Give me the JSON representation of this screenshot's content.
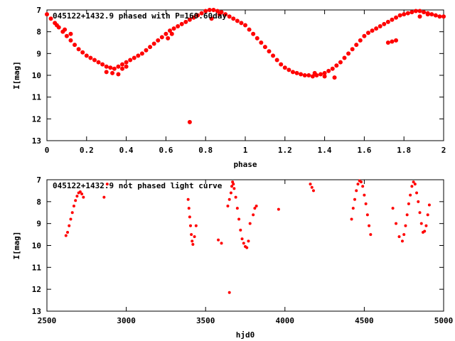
{
  "chart_data": [
    {
      "type": "scatter",
      "title": "045122+1432.9 phased with P=160.60day",
      "xlabel": "phase",
      "ylabel": "I[mag]",
      "xlim": [
        0,
        2
      ],
      "ylim": [
        13,
        7
      ],
      "y_inverted": true,
      "xticks": [
        "0",
        "0.2",
        "0.4",
        "0.6",
        "0.8",
        "1",
        "1.2",
        "1.4",
        "1.6",
        "1.8",
        "2"
      ],
      "xtick_values": [
        0,
        0.2,
        0.4,
        0.6,
        0.8,
        1.0,
        1.2,
        1.4,
        1.6,
        1.8,
        2.0
      ],
      "yticks": [
        "7",
        "8",
        "9",
        "10",
        "11",
        "12",
        "13"
      ],
      "ytick_values": [
        7,
        8,
        9,
        10,
        11,
        12,
        13
      ],
      "grid": false,
      "marker_color": "#ff0000",
      "series": [
        {
          "x": [
            0.0,
            0.02,
            0.04,
            0.06,
            0.08,
            0.1,
            0.12,
            0.14,
            0.16,
            0.18,
            0.2,
            0.22,
            0.24,
            0.26,
            0.28,
            0.3,
            0.32,
            0.34,
            0.36,
            0.38,
            0.4,
            0.42,
            0.44,
            0.46,
            0.48,
            0.5,
            0.52,
            0.54,
            0.56,
            0.58,
            0.6,
            0.62,
            0.64,
            0.66,
            0.68,
            0.7,
            0.72,
            0.74,
            0.76,
            0.78,
            0.8,
            0.82,
            0.84,
            0.86,
            0.88,
            0.9,
            0.92,
            0.94,
            0.96,
            0.98,
            0.72,
            0.3,
            0.33,
            0.36,
            0.38,
            0.4,
            0.05,
            0.09,
            0.12,
            0.61,
            0.63,
            0.83,
            0.87,
            1.0,
            1.02,
            1.04,
            1.06,
            1.08,
            1.1,
            1.12,
            1.14,
            1.16,
            1.18,
            1.2,
            1.22,
            1.24,
            1.26,
            1.28,
            1.3,
            1.32,
            1.34,
            1.36,
            1.38,
            1.4,
            1.42,
            1.44,
            1.46,
            1.48,
            1.5,
            1.52,
            1.54,
            1.56,
            1.58,
            1.6,
            1.62,
            1.64,
            1.66,
            1.68,
            1.7,
            1.72,
            1.74,
            1.76,
            1.78,
            1.8,
            1.82,
            1.84,
            1.86,
            1.88,
            1.9,
            1.92,
            1.94,
            1.96,
            1.98,
            2.0,
            1.72,
            1.74,
            1.76,
            1.35,
            1.4,
            1.45,
            1.88,
            1.92
          ],
          "y": [
            7.2,
            7.4,
            7.6,
            7.8,
            8.0,
            8.2,
            8.4,
            8.6,
            8.8,
            8.95,
            9.1,
            9.2,
            9.3,
            9.4,
            9.5,
            9.6,
            9.65,
            9.7,
            9.6,
            9.5,
            9.4,
            9.3,
            9.2,
            9.1,
            9.0,
            8.85,
            8.7,
            8.55,
            8.4,
            8.25,
            8.1,
            7.95,
            7.85,
            7.75,
            7.65,
            7.55,
            7.45,
            7.35,
            7.25,
            7.15,
            7.05,
            7.0,
            7.0,
            7.05,
            7.1,
            7.2,
            7.3,
            7.4,
            7.5,
            7.6,
            12.15,
            9.85,
            9.9,
            9.95,
            9.7,
            9.6,
            7.7,
            7.9,
            8.1,
            8.3,
            8.1,
            7.4,
            7.2,
            7.7,
            7.9,
            8.1,
            8.3,
            8.5,
            8.7,
            8.9,
            9.1,
            9.3,
            9.5,
            9.65,
            9.75,
            9.85,
            9.9,
            9.95,
            10.0,
            10.0,
            10.05,
            10.0,
            9.95,
            9.9,
            9.8,
            9.7,
            9.55,
            9.4,
            9.2,
            9.0,
            8.8,
            8.6,
            8.4,
            8.2,
            8.05,
            7.95,
            7.85,
            7.75,
            7.65,
            7.55,
            7.45,
            7.35,
            7.25,
            7.2,
            7.15,
            7.1,
            7.05,
            7.05,
            7.1,
            7.15,
            7.2,
            7.25,
            7.3,
            7.3,
            8.5,
            8.45,
            8.4,
            9.9,
            10.05,
            10.1,
            7.3,
            7.2
          ]
        }
      ]
    },
    {
      "type": "scatter",
      "title": "045122+1432.9 not phased light curve",
      "xlabel": "hjd0",
      "ylabel": "I[mag]",
      "xlim": [
        2500,
        5000
      ],
      "ylim": [
        13,
        7
      ],
      "y_inverted": true,
      "xticks": [
        "2500",
        "3000",
        "3500",
        "4000",
        "4500",
        "5000"
      ],
      "xtick_values": [
        2500,
        3000,
        3500,
        4000,
        4500,
        5000
      ],
      "yticks": [
        "7",
        "8",
        "9",
        "10",
        "11",
        "12",
        "13"
      ],
      "ytick_values": [
        7,
        8,
        9,
        10,
        11,
        12,
        13
      ],
      "grid": false,
      "marker_color": "#ff0000",
      "series": [
        {
          "x": [
            2620,
            2630,
            2640,
            2650,
            2660,
            2670,
            2680,
            2690,
            2700,
            2710,
            2720,
            2730,
            2860,
            2880,
            3390,
            3395,
            3400,
            3405,
            3410,
            3415,
            3420,
            3430,
            3440,
            3580,
            3600,
            3640,
            3650,
            3660,
            3665,
            3670,
            3675,
            3680,
            3690,
            3700,
            3710,
            3720,
            3730,
            3740,
            3750,
            3760,
            3770,
            3780,
            3800,
            3810,
            3820,
            3960,
            4160,
            4170,
            4180,
            4420,
            4430,
            4440,
            4450,
            4460,
            4470,
            4480,
            4490,
            4500,
            4510,
            4520,
            4530,
            4540,
            4680,
            4700,
            4720,
            4740,
            4750,
            4760,
            4770,
            4780,
            4790,
            4800,
            4810,
            4820,
            4830,
            4840,
            4850,
            4860,
            4870,
            4880,
            4890,
            4900,
            4910,
            3650
          ],
          "y": [
            9.55,
            9.4,
            9.1,
            8.8,
            8.5,
            8.2,
            7.95,
            7.75,
            7.6,
            7.55,
            7.65,
            7.8,
            7.8,
            7.2,
            7.9,
            8.3,
            8.7,
            9.1,
            9.5,
            9.8,
            9.95,
            9.6,
            9.1,
            9.75,
            9.9,
            8.2,
            7.9,
            7.6,
            7.3,
            7.1,
            7.2,
            7.4,
            7.8,
            8.3,
            8.8,
            9.3,
            9.7,
            9.9,
            10.05,
            10.1,
            9.8,
            9.0,
            8.6,
            8.3,
            8.2,
            8.35,
            7.2,
            7.35,
            7.5,
            8.8,
            8.3,
            7.9,
            7.5,
            7.2,
            7.05,
            7.1,
            7.3,
            7.7,
            8.1,
            8.6,
            9.1,
            9.5,
            8.3,
            9.0,
            9.6,
            9.8,
            9.5,
            9.1,
            8.6,
            8.1,
            7.7,
            7.3,
            7.1,
            7.2,
            7.6,
            8.0,
            8.5,
            9.0,
            9.4,
            9.35,
            9.1,
            8.6,
            8.15,
            12.15
          ]
        }
      ]
    }
  ]
}
